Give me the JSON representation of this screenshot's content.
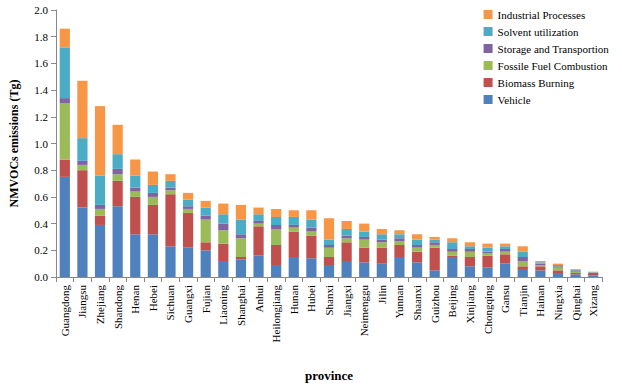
{
  "chart_data": {
    "type": "bar",
    "stacked": true,
    "grid": false,
    "legend": "top-right",
    "x_label": "province",
    "y_label": "NMVOCs emissions (Tg)",
    "ylim": [
      0,
      2.0
    ],
    "yticks": [
      {
        "value": 0,
        "label": "0.0"
      },
      0.2,
      0.4,
      0.6,
      0.8,
      {
        "value": 1,
        "label": "1.0"
      },
      1.2,
      1.4,
      1.6,
      1.8,
      {
        "value": 2,
        "label": "2.0"
      }
    ],
    "categories": [
      "Guangdong",
      "Jiangsu",
      "Zhejiang",
      "Shandong",
      "Henan",
      "Hebei",
      "Sichuan",
      "Guangxi",
      "Fujian",
      "Liaoning",
      "Shanghai",
      "Anhui",
      "Heilongjiang",
      "Hunan",
      "Hubei",
      "Shanxi",
      "Jiangxi",
      "Neimenggu",
      "Jilin",
      "Yunnan",
      "Shaanxi",
      "Guizhou",
      "Beijing",
      "Xinjiang",
      "Chongqing",
      "Gansu",
      "Tianjin",
      "Hainan",
      "Ningxia",
      "Qinghai",
      "Xizang"
    ],
    "series": [
      {
        "name": "Vehicle",
        "color": "#4f81bd",
        "values": [
          0.75,
          0.52,
          0.39,
          0.53,
          0.32,
          0.32,
          0.23,
          0.22,
          0.2,
          0.12,
          0.13,
          0.16,
          0.09,
          0.15,
          0.14,
          0.09,
          0.12,
          0.11,
          0.1,
          0.15,
          0.11,
          0.05,
          0.15,
          0.08,
          0.07,
          0.1,
          0.06,
          0.05,
          0.03,
          0.02,
          0.01
        ]
      },
      {
        "name": "Biomass Burning",
        "color": "#c0504d",
        "values": [
          0.13,
          0.28,
          0.07,
          0.19,
          0.28,
          0.22,
          0.39,
          0.26,
          0.06,
          0.13,
          0.02,
          0.22,
          0.15,
          0.19,
          0.17,
          0.06,
          0.14,
          0.11,
          0.12,
          0.09,
          0.08,
          0.17,
          0.01,
          0.07,
          0.09,
          0.07,
          0.02,
          0.03,
          0.02,
          0.01,
          0.02
        ]
      },
      {
        "name": "Fossile Fuel Combustion",
        "color": "#9bbb59",
        "values": [
          0.42,
          0.04,
          0.05,
          0.05,
          0.04,
          0.06,
          0.03,
          0.03,
          0.17,
          0.1,
          0.14,
          0.02,
          0.12,
          0.03,
          0.03,
          0.07,
          0.03,
          0.06,
          0.04,
          0.03,
          0.03,
          0.02,
          0.03,
          0.04,
          0.02,
          0.02,
          0.04,
          0.01,
          0.02,
          0.01,
          0.0
        ]
      },
      {
        "name": "Storage and Transportion",
        "color": "#8064a2",
        "values": [
          0.04,
          0.03,
          0.03,
          0.04,
          0.03,
          0.03,
          0.02,
          0.02,
          0.03,
          0.05,
          0.03,
          0.02,
          0.03,
          0.02,
          0.03,
          0.02,
          0.02,
          0.02,
          0.02,
          0.02,
          0.02,
          0.02,
          0.02,
          0.02,
          0.01,
          0.02,
          0.03,
          0.01,
          0.01,
          0.01,
          0.0
        ]
      },
      {
        "name": "Solvent utilization",
        "color": "#4bacc6",
        "values": [
          0.38,
          0.17,
          0.22,
          0.11,
          0.09,
          0.06,
          0.05,
          0.05,
          0.06,
          0.07,
          0.11,
          0.05,
          0.06,
          0.06,
          0.06,
          0.04,
          0.05,
          0.04,
          0.04,
          0.03,
          0.04,
          0.02,
          0.05,
          0.02,
          0.03,
          0.02,
          0.04,
          0.01,
          0.01,
          0.005,
          0.005
        ]
      },
      {
        "name": "Industrial Processes",
        "color": "#f79646",
        "values": [
          0.14,
          0.43,
          0.52,
          0.22,
          0.12,
          0.1,
          0.05,
          0.05,
          0.05,
          0.08,
          0.11,
          0.05,
          0.06,
          0.05,
          0.07,
          0.16,
          0.06,
          0.06,
          0.04,
          0.03,
          0.04,
          0.02,
          0.03,
          0.03,
          0.03,
          0.02,
          0.04,
          0.01,
          0.01,
          0.005,
          0.005
        ]
      }
    ]
  }
}
